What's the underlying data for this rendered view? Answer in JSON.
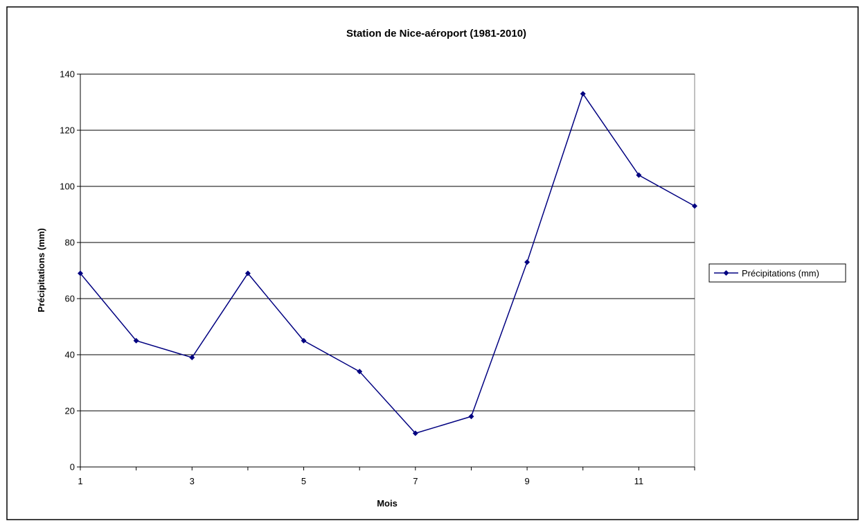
{
  "chart_data": {
    "type": "line",
    "title": "Station de Nice-aéroport (1981-2010)",
    "xlabel": "Mois",
    "ylabel": "Précipitations (mm)",
    "x": [
      1,
      2,
      3,
      4,
      5,
      6,
      7,
      8,
      9,
      10,
      11,
      12
    ],
    "xlim": [
      1,
      12
    ],
    "x_tick_labels": [
      "1",
      "3",
      "5",
      "7",
      "9",
      "11"
    ],
    "x_tick_values": [
      1,
      3,
      5,
      7,
      9,
      11
    ],
    "ylim": [
      0,
      140
    ],
    "y_ticks": [
      0,
      20,
      40,
      60,
      80,
      100,
      120,
      140
    ],
    "y_tick_labels": [
      "0",
      "20",
      "40",
      "60",
      "80",
      "100",
      "120",
      "140"
    ],
    "series": [
      {
        "name": "Précipitations (mm)",
        "values": [
          69,
          45,
          39,
          69,
          45,
          34,
          12,
          18,
          73,
          133,
          104,
          93
        ],
        "color": "#000080",
        "marker": "diamond"
      }
    ],
    "grid": "horizontal",
    "legend_position": "right"
  }
}
